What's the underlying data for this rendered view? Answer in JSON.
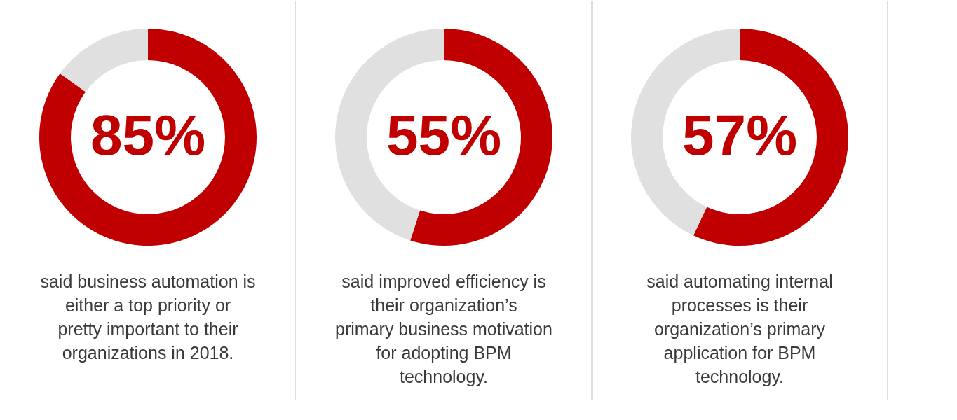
{
  "chart_data": [
    {
      "type": "donut",
      "categories": [
        null,
        null
      ],
      "values": [
        85,
        15
      ],
      "colors": [
        "#c00000",
        "#e0e0e0"
      ],
      "value_labels": [
        "85%",
        null
      ],
      "annotations": [
        "said business automation is either a top priority or pretty important to their organizations in 2018."
      ]
    },
    {
      "type": "donut",
      "categories": [
        null,
        null
      ],
      "values": [
        55,
        45
      ],
      "colors": [
        "#c00000",
        "#e0e0e0"
      ],
      "value_labels": [
        "55%",
        null
      ],
      "annotations": [
        "said improved efficiency is their organization’s primary business motivation for adopting BPM technology."
      ]
    },
    {
      "type": "donut",
      "categories": [
        null,
        null
      ],
      "values": [
        57,
        43
      ],
      "colors": [
        "#c00000",
        "#e0e0e0"
      ],
      "value_labels": [
        "57%",
        null
      ],
      "annotations": [
        "said automating internal processes is their organization’s primary application for BPM technology."
      ]
    }
  ]
}
